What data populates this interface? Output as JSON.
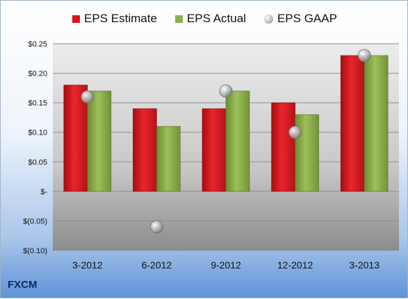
{
  "chart_data": {
    "type": "bar",
    "categories": [
      "3-2012",
      "6-2012",
      "9-2012",
      "12-2012",
      "3-2013"
    ],
    "series": [
      {
        "name": "EPS Estimate",
        "kind": "bar",
        "values": [
          0.18,
          0.14,
          0.14,
          0.15,
          0.23
        ],
        "color": "#d9161b"
      },
      {
        "name": "EPS Actual",
        "kind": "bar",
        "values": [
          0.17,
          0.11,
          0.17,
          0.13,
          0.23
        ],
        "color": "#8cb04a"
      },
      {
        "name": "EPS GAAP",
        "kind": "marker",
        "values": [
          0.16,
          -0.06,
          0.17,
          0.1,
          0.23
        ],
        "color": "#b8b8b8"
      }
    ],
    "yticks": [
      0.25,
      0.2,
      0.15,
      0.1,
      0.05,
      0,
      -0.05,
      -0.1
    ],
    "ytick_labels": [
      "$0.25",
      "$0.20",
      "$0.15",
      "$0.10",
      "$0.05",
      "$-",
      "$(0.05)",
      "$(0.10)"
    ],
    "ylim": [
      -0.1,
      0.25
    ],
    "grid": true,
    "legend_position": "top-center"
  },
  "ticker": "FXCM"
}
